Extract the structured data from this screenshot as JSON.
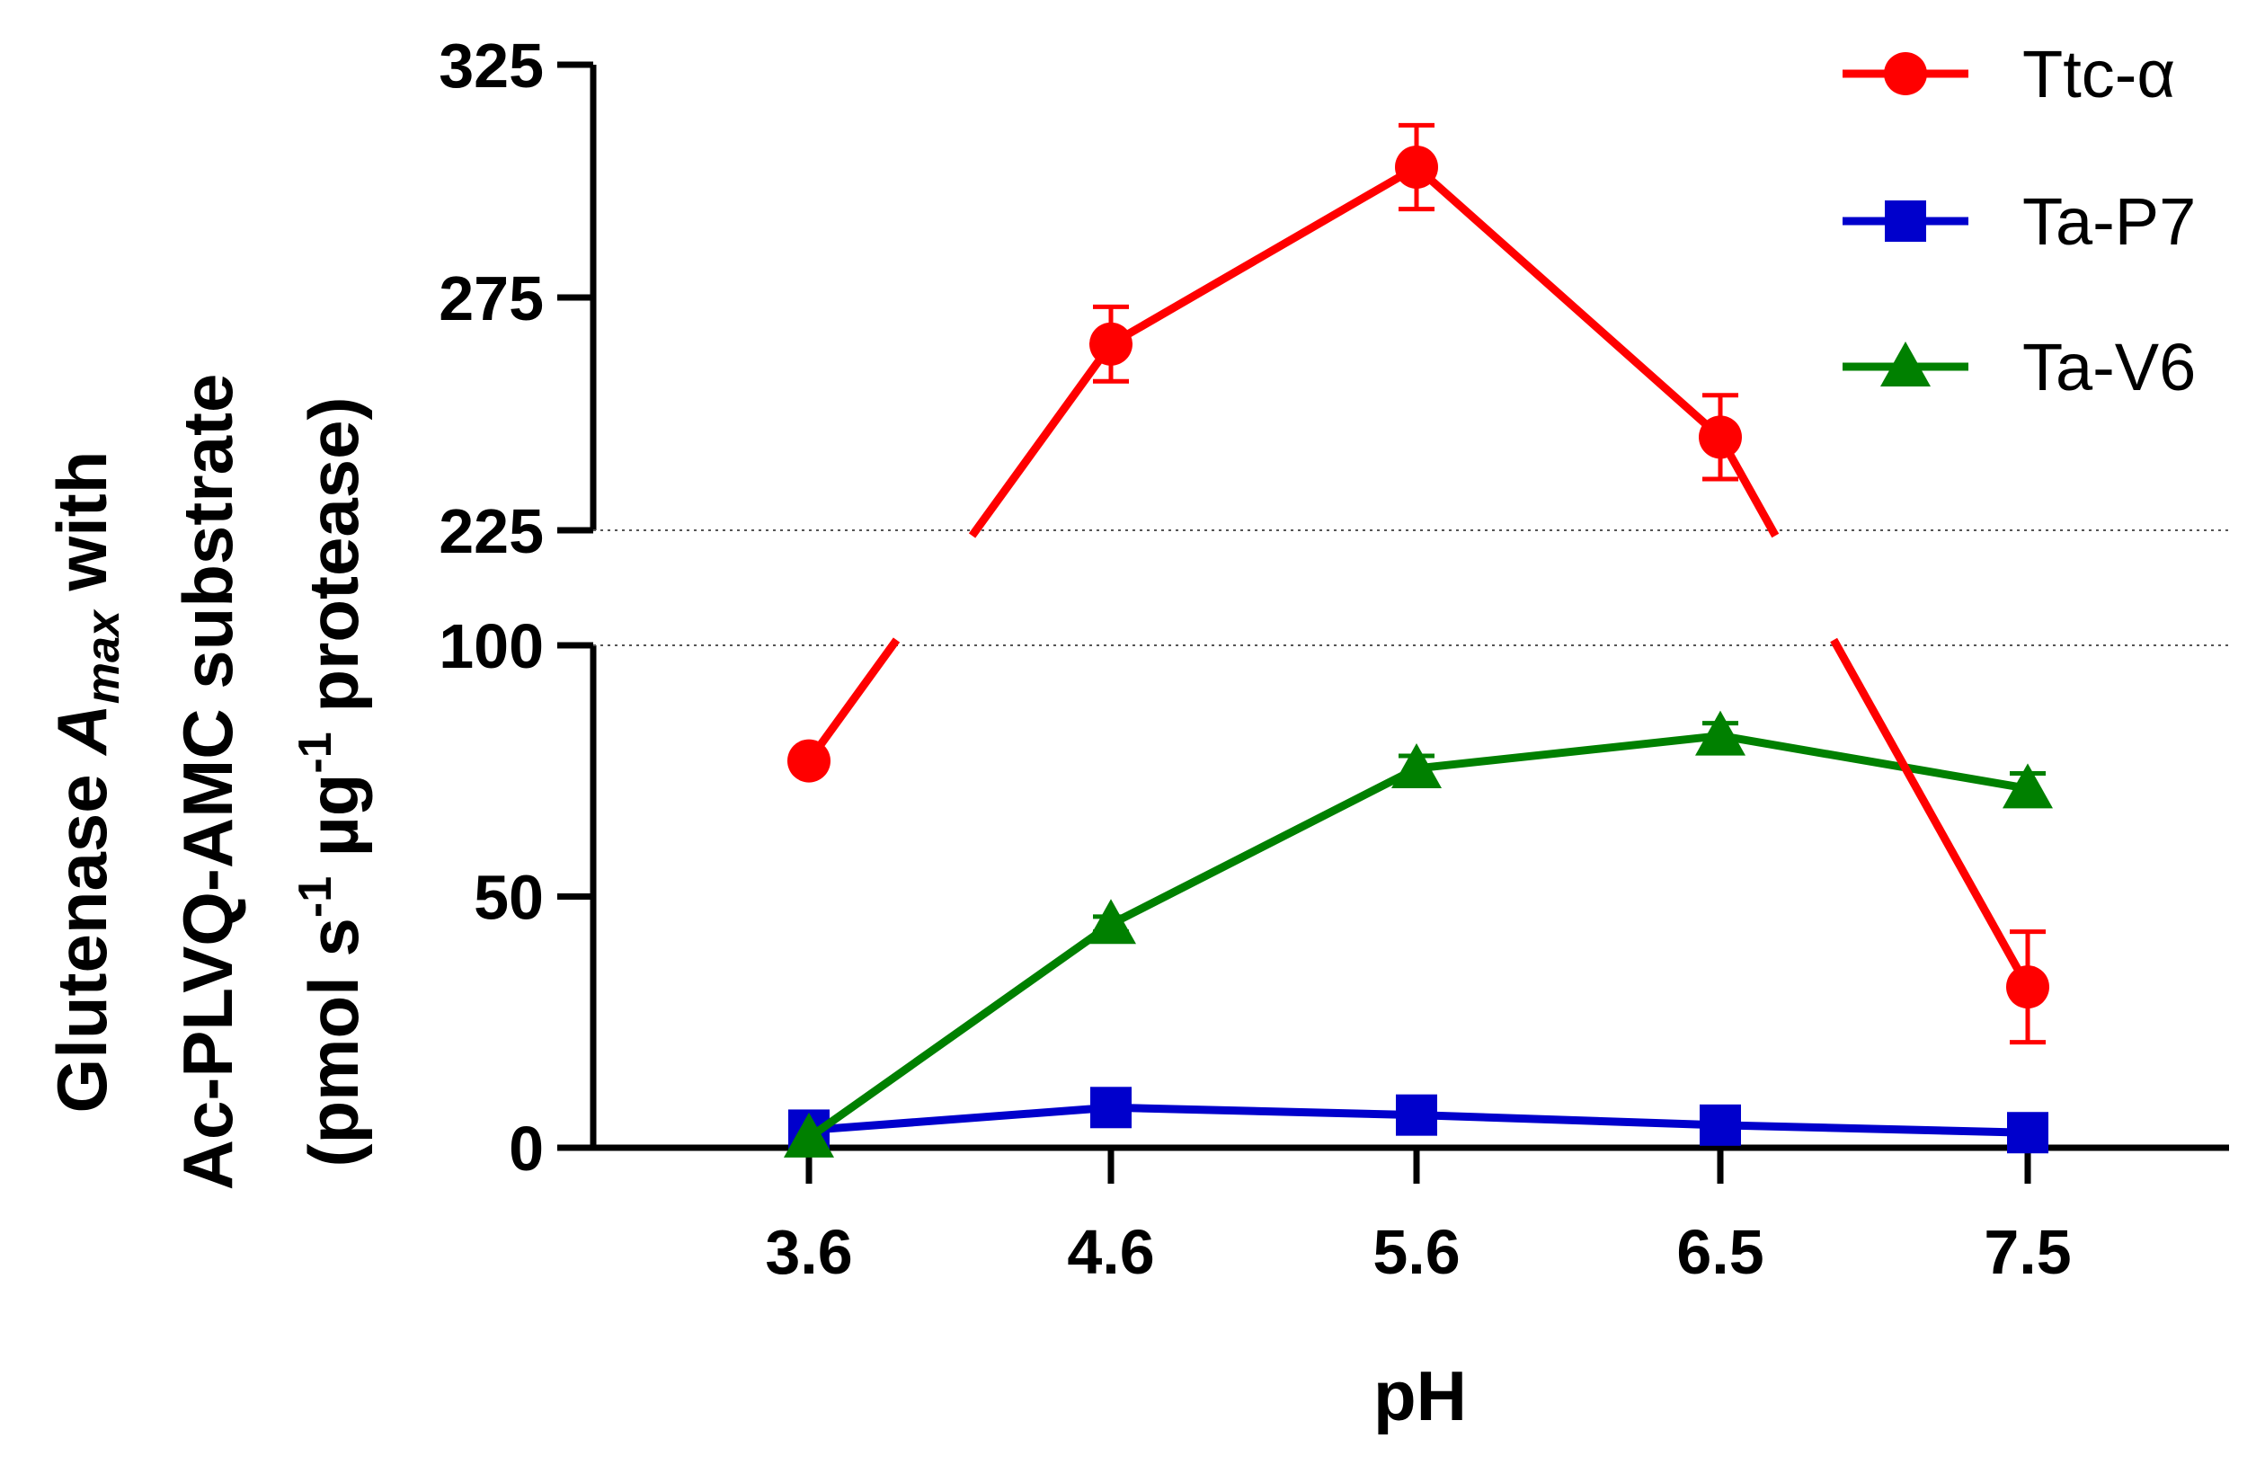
{
  "chart_data": {
    "type": "line",
    "ylabel": {
      "line1_pre": "Glutenase ",
      "line1_A": "A",
      "line1_sub": "max",
      "line1_post": " with",
      "line2": "Ac-PLVQ-AMC substrate",
      "line3_pre": "(pmol s",
      "line3_sup1": "-1",
      "line3_mid": " µg",
      "line3_sup2": "-1",
      "line3_post": " protease)"
    },
    "xlabel": "pH",
    "categories": [
      "3.6",
      "4.6",
      "5.6",
      "6.5",
      "7.5"
    ],
    "axis_break": {
      "lower_range": [
        0,
        100
      ],
      "upper_range": [
        225,
        325
      ],
      "lower_ticks": [
        0,
        50,
        100
      ],
      "upper_ticks": [
        225,
        275,
        325
      ]
    },
    "series": [
      {
        "name": "Ttc-α",
        "color": "#ff0000",
        "marker": "circle",
        "values": [
          77,
          265,
          303,
          245,
          32
        ],
        "errors": [
          0,
          8,
          9,
          9,
          11
        ]
      },
      {
        "name": "Ta-P7",
        "color": "#0000cc",
        "marker": "square",
        "values": [
          3.5,
          8,
          6.5,
          4.5,
          3
        ],
        "errors": [
          0,
          0,
          0,
          0,
          0
        ]
      },
      {
        "name": "Ta-V6",
        "color": "#008000",
        "marker": "triangle",
        "values": [
          2,
          44.5,
          75.5,
          82,
          71.5
        ],
        "errors": [
          0,
          1.5,
          2.5,
          2.5,
          3
        ]
      }
    ]
  }
}
